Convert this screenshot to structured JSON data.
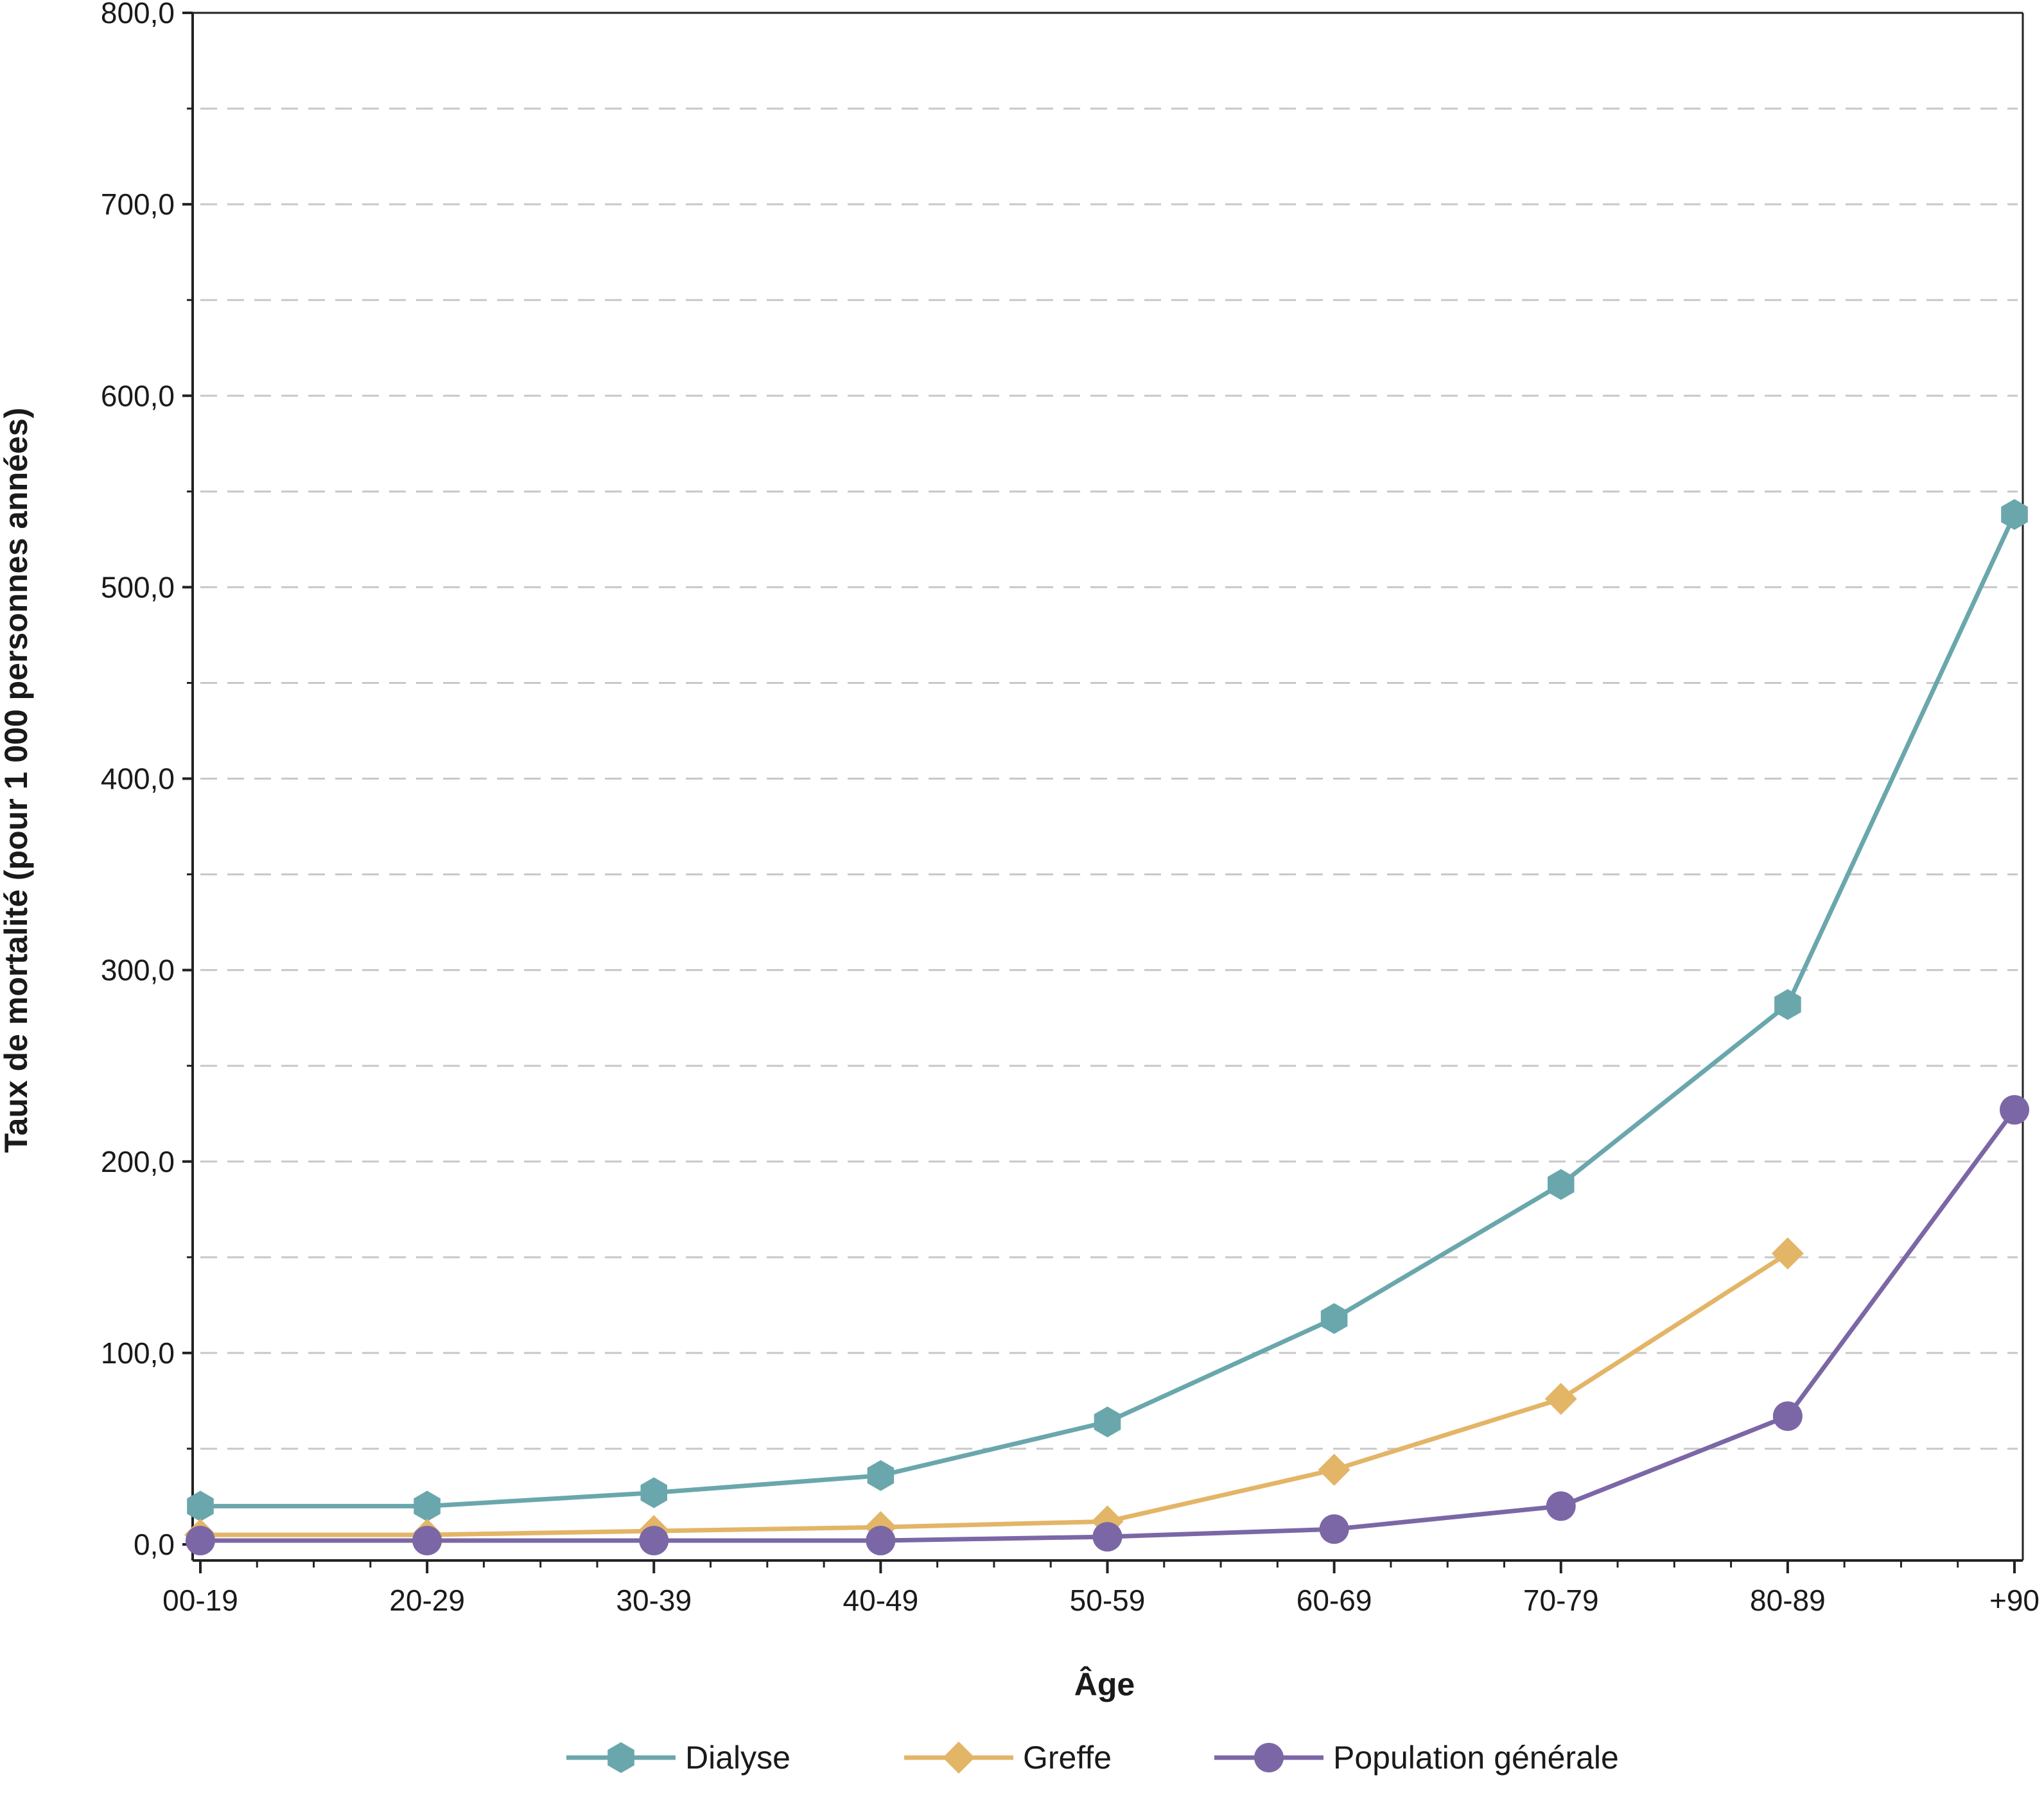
{
  "chart_data": {
    "type": "line",
    "title": "",
    "xlabel": "Âge",
    "ylabel": "Taux de mortalité (pour 1 000 personnes années)",
    "categories": [
      "00-19",
      "20-29",
      "30-39",
      "40-49",
      "50-59",
      "60-69",
      "70-79",
      "80-89",
      "+90"
    ],
    "ylim": [
      0,
      800
    ],
    "yticks": [
      "0,0",
      "100,0",
      "200,0",
      "300,0",
      "400,0",
      "500,0",
      "600,0",
      "700,0",
      "800,0"
    ],
    "grid": "horizontal dashed",
    "legend_position": "bottom",
    "series": [
      {
        "name": "Dialyse",
        "color": "#6aa7ac",
        "marker": "hexagon",
        "values": [
          20,
          20,
          27,
          36,
          64,
          118,
          188,
          282,
          538
        ]
      },
      {
        "name": "Greffe",
        "color": "#e3b567",
        "marker": "diamond",
        "values": [
          5,
          5,
          7,
          9,
          12,
          39,
          76,
          152,
          null
        ]
      },
      {
        "name": "Population générale",
        "color": "#7b67a6",
        "marker": "circle",
        "values": [
          2,
          2,
          2,
          2,
          4,
          8,
          20,
          67,
          227
        ]
      }
    ]
  }
}
